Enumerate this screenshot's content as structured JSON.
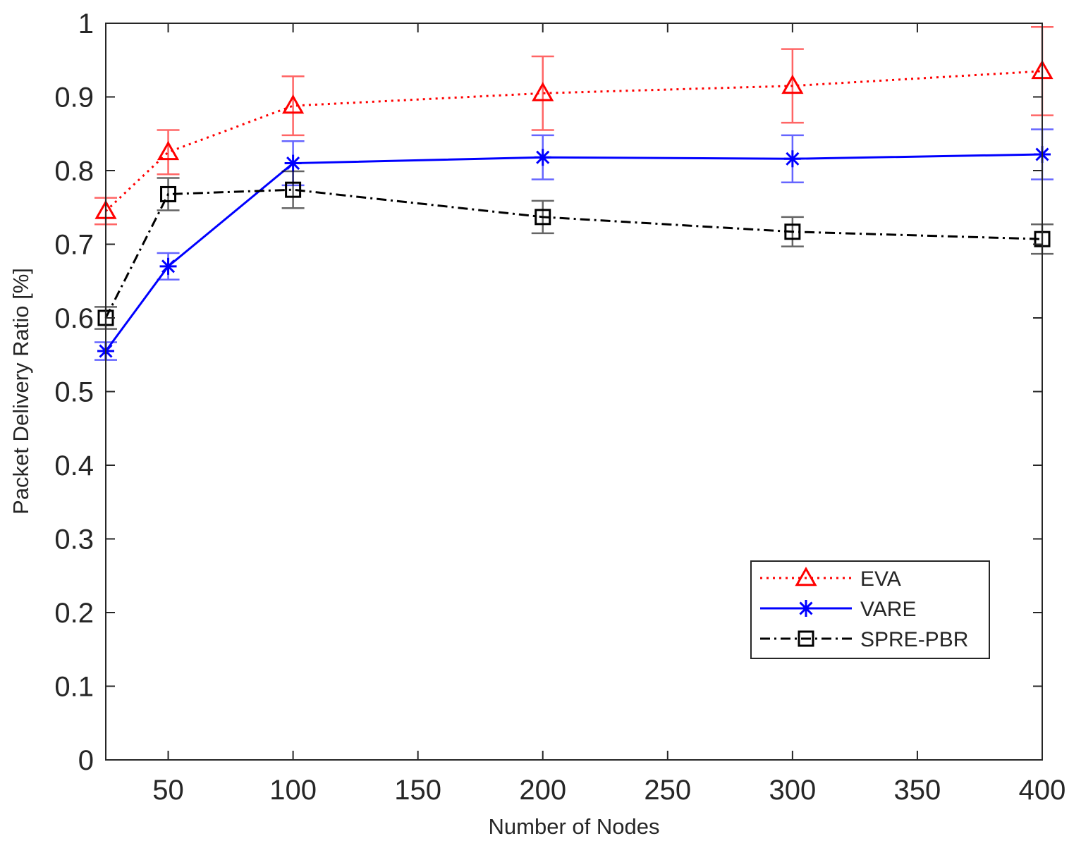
{
  "chart_data": {
    "type": "line",
    "title": "",
    "xlabel": "Number of Nodes",
    "ylabel": "Packet Delivery Ratio [%]",
    "xlim": [
      25,
      400
    ],
    "ylim": [
      0,
      1
    ],
    "xticks": [
      50,
      100,
      150,
      200,
      250,
      300,
      350,
      400
    ],
    "xtick_labels": [
      "50",
      "100",
      "150",
      "200",
      "250",
      "300",
      "350",
      "400"
    ],
    "yticks": [
      0,
      0.1,
      0.2,
      0.3,
      0.4,
      0.5,
      0.6,
      0.7,
      0.8,
      0.9,
      1
    ],
    "ytick_labels": [
      "0",
      "0.1",
      "0.2",
      "0.3",
      "0.4",
      "0.5",
      "0.6",
      "0.7",
      "0.8",
      "0.9",
      "1"
    ],
    "grid": false,
    "legend_position": "bottom-right",
    "x": [
      25,
      50,
      100,
      200,
      300,
      400
    ],
    "series": [
      {
        "name": "EVA",
        "color": "#ff0000",
        "line_style": "dotted",
        "marker": "triangle",
        "values": [
          0.745,
          0.825,
          0.888,
          0.905,
          0.915,
          0.935
        ],
        "error": [
          0.018,
          0.03,
          0.04,
          0.05,
          0.05,
          0.06
        ]
      },
      {
        "name": "VARE",
        "color": "#0000ff",
        "line_style": "solid",
        "marker": "asterisk",
        "values": [
          0.555,
          0.67,
          0.81,
          0.818,
          0.816,
          0.822
        ],
        "error": [
          0.012,
          0.018,
          0.03,
          0.03,
          0.032,
          0.034
        ]
      },
      {
        "name": "SPRE-PBR",
        "color": "#000000",
        "line_style": "dash-dot",
        "marker": "square",
        "values": [
          0.6,
          0.768,
          0.774,
          0.737,
          0.717,
          0.707
        ],
        "error": [
          0.015,
          0.022,
          0.025,
          0.022,
          0.02,
          0.02
        ]
      }
    ]
  }
}
